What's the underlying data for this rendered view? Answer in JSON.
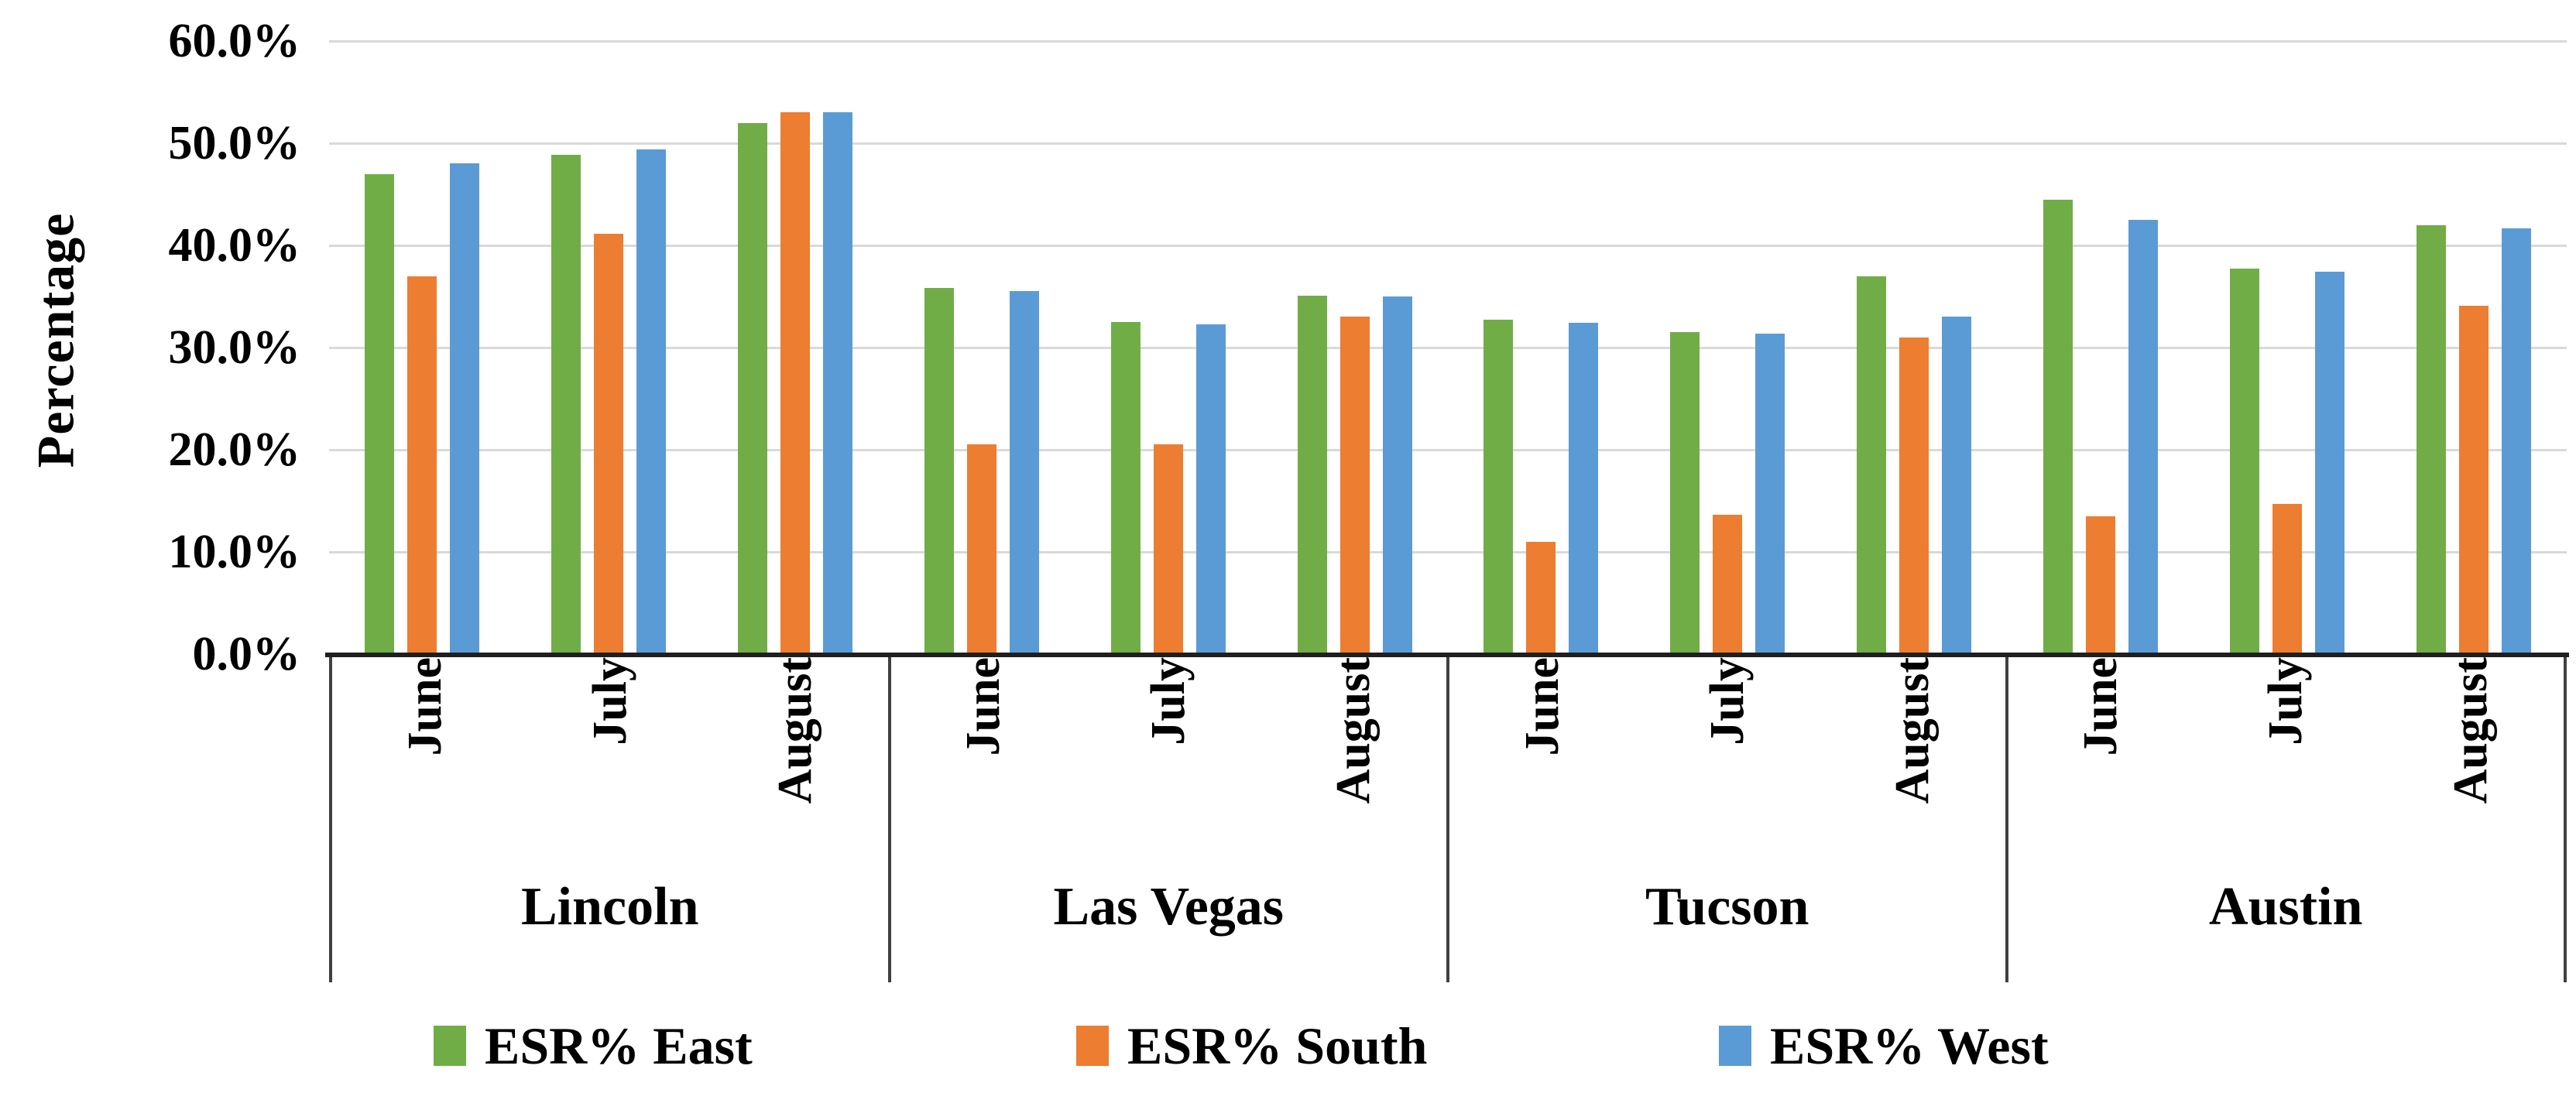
{
  "chart_data": {
    "type": "bar",
    "title": "",
    "ylabel": "Percentage",
    "ylim": [
      0,
      60
    ],
    "ytick_step": 10,
    "yticks": [
      {
        "value": 0,
        "label": "0.0%"
      },
      {
        "value": 10,
        "label": "10.0%"
      },
      {
        "value": 20,
        "label": "20.0%"
      },
      {
        "value": 30,
        "label": "30.0%"
      },
      {
        "value": 40,
        "label": "40.0%"
      },
      {
        "value": 50,
        "label": "50.0%"
      },
      {
        "value": 60,
        "label": "60.0%"
      }
    ],
    "grid": true,
    "gridline_color": "#d9d9d9",
    "axis_color": "#1f1f1f",
    "legend_position": "bottom",
    "groups": [
      "Lincoln",
      "Las Vegas",
      "Tucson",
      "Austin"
    ],
    "categories": [
      "June",
      "July",
      "August"
    ],
    "series": [
      {
        "name": "ESR% East",
        "color": "#70AD47",
        "values": {
          "Lincoln": [
            47.0,
            48.9,
            52.0
          ],
          "Las Vegas": [
            35.8,
            32.5,
            35.1
          ],
          "Tucson": [
            32.7,
            31.5,
            37.0
          ],
          "Austin": [
            44.5,
            37.7,
            42.0
          ]
        }
      },
      {
        "name": "ESR% South",
        "color": "#ED7D31",
        "values": {
          "Lincoln": [
            37.0,
            41.1,
            53.0
          ],
          "Las Vegas": [
            20.5,
            20.5,
            33.0
          ],
          "Tucson": [
            11.0,
            13.6,
            31.0
          ],
          "Austin": [
            13.5,
            14.7,
            34.1
          ]
        }
      },
      {
        "name": "ESR% West",
        "color": "#5B9BD5",
        "values": {
          "Lincoln": [
            48.0,
            49.4,
            53.0
          ],
          "Las Vegas": [
            35.5,
            32.3,
            35.0
          ],
          "Tucson": [
            32.4,
            31.4,
            33.0
          ],
          "Austin": [
            42.5,
            37.4,
            41.7
          ]
        }
      }
    ]
  }
}
